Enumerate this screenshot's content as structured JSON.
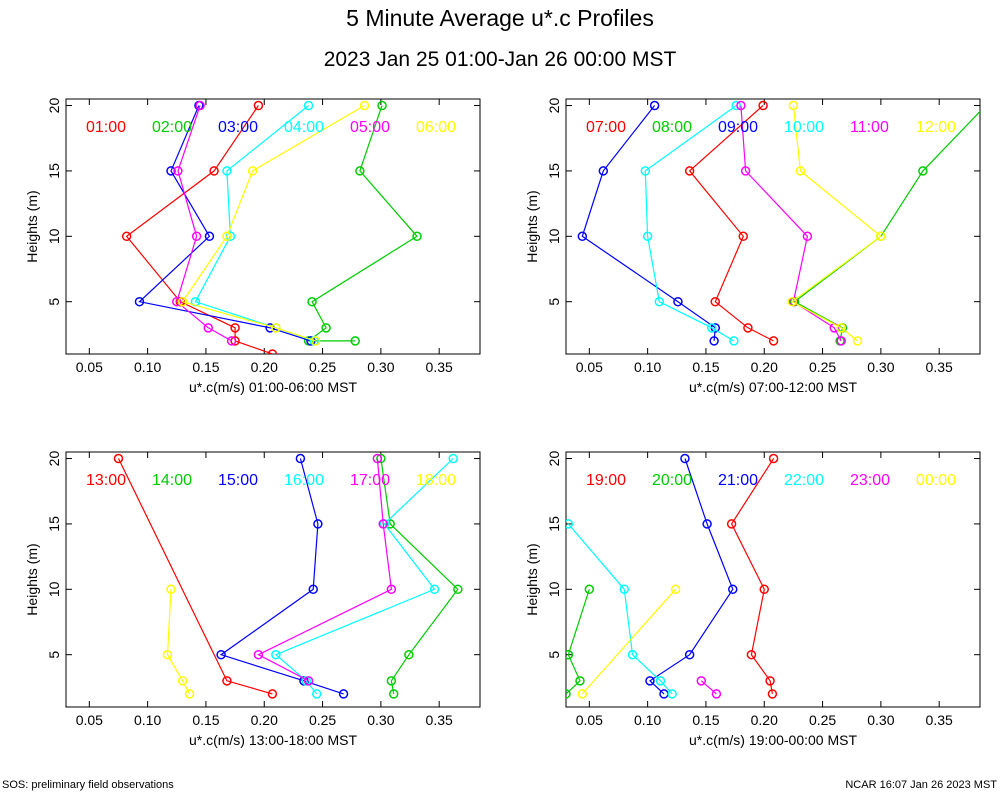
{
  "title": "5 Minute Average u*.c Profiles",
  "subtitle": "2023 Jan 25 01:00-Jan 26 00:00 MST",
  "footer_left": "SOS: preliminary field observations",
  "footer_right": "NCAR 16:07 Jan 26 2023 MST",
  "colors": [
    "#ff0000",
    "#00cc00",
    "#0000ff",
    "#00ffff",
    "#ff00ff",
    "#ffff00"
  ],
  "chart_data": [
    {
      "type": "line",
      "ylabel": "Heights (m)",
      "xlabel": "u*.c(m/s) 01:00-06:00 MST",
      "xlim": [
        0.03,
        0.385
      ],
      "ylim": [
        1,
        20.5
      ],
      "xticks": [
        "0.05",
        "0.10",
        "0.15",
        "0.20",
        "0.25",
        "0.30",
        "0.35"
      ],
      "yticks": [
        "5",
        "10",
        "15",
        "20"
      ],
      "series": [
        {
          "name": "01:00",
          "points": [
            [
              0.207,
              1
            ],
            [
              0.175,
              2
            ],
            [
              0.175,
              3
            ],
            [
              0.128,
              5
            ],
            [
              0.082,
              10
            ],
            [
              0.157,
              15
            ],
            [
              0.195,
              20
            ]
          ]
        },
        {
          "name": "02:00",
          "points": [
            [
              0.278,
              2
            ],
            [
              0.238,
              2
            ],
            [
              0.253,
              3
            ],
            [
              0.241,
              5
            ],
            [
              0.331,
              10
            ],
            [
              0.282,
              15
            ],
            [
              0.301,
              20
            ]
          ]
        },
        {
          "name": "03:00",
          "points": [
            [
              0.24,
              2
            ],
            [
              0.205,
              3
            ],
            [
              0.093,
              5
            ],
            [
              0.153,
              10
            ],
            [
              0.12,
              15
            ],
            [
              0.144,
              20
            ]
          ]
        },
        {
          "name": "04:00",
          "points": [
            [
              0.243,
              2
            ],
            [
              0.21,
              3
            ],
            [
              0.141,
              5
            ],
            [
              0.171,
              10
            ],
            [
              0.168,
              15
            ],
            [
              0.238,
              20
            ]
          ]
        },
        {
          "name": "05:00",
          "points": [
            [
              0.172,
              2
            ],
            [
              0.152,
              3
            ],
            [
              0.125,
              5
            ],
            [
              0.142,
              10
            ],
            [
              0.126,
              15
            ],
            [
              0.145,
              20
            ]
          ]
        },
        {
          "name": "06:00",
          "points": [
            [
              0.244,
              2
            ],
            [
              0.21,
              3
            ],
            [
              0.13,
              5
            ],
            [
              0.168,
              10
            ],
            [
              0.19,
              15
            ],
            [
              0.286,
              20
            ]
          ]
        }
      ]
    },
    {
      "type": "line",
      "ylabel": "Heights (m)",
      "xlabel": "u*.c(m/s) 07:00-12:00 MST",
      "xlim": [
        0.03,
        0.385
      ],
      "ylim": [
        1,
        20.5
      ],
      "xticks": [
        "0.05",
        "0.10",
        "0.15",
        "0.20",
        "0.25",
        "0.30",
        "0.35"
      ],
      "yticks": [
        "5",
        "10",
        "15",
        "20"
      ],
      "series": [
        {
          "name": "07:00",
          "points": [
            [
              0.208,
              2
            ],
            [
              0.186,
              3
            ],
            [
              0.158,
              5
            ],
            [
              0.182,
              10
            ],
            [
              0.136,
              15
            ],
            [
              0.199,
              20
            ]
          ]
        },
        {
          "name": "08:00",
          "points": [
            [
              0.265,
              2
            ],
            [
              0.267,
              3
            ],
            [
              0.226,
              5
            ],
            [
              0.3,
              10
            ],
            [
              0.336,
              15
            ],
            [
              0.39,
              20
            ]
          ]
        },
        {
          "name": "09:00",
          "points": [
            [
              0.157,
              2
            ],
            [
              0.158,
              3
            ],
            [
              0.126,
              5
            ],
            [
              0.044,
              10
            ],
            [
              0.062,
              15
            ],
            [
              0.106,
              20
            ]
          ]
        },
        {
          "name": "10:00",
          "points": [
            [
              0.174,
              2
            ],
            [
              0.155,
              3
            ],
            [
              0.11,
              5
            ],
            [
              0.1,
              10
            ],
            [
              0.098,
              15
            ],
            [
              0.176,
              20
            ]
          ]
        },
        {
          "name": "11:00",
          "points": [
            [
              0.266,
              2
            ],
            [
              0.26,
              3
            ],
            [
              0.225,
              5
            ],
            [
              0.237,
              10
            ],
            [
              0.184,
              15
            ],
            [
              0.18,
              20
            ]
          ]
        },
        {
          "name": "12:00",
          "points": [
            [
              0.28,
              2
            ],
            [
              0.266,
              3
            ],
            [
              0.224,
              5
            ],
            [
              0.3,
              10
            ],
            [
              0.231,
              15
            ],
            [
              0.225,
              20
            ]
          ]
        }
      ]
    },
    {
      "type": "line",
      "ylabel": "Heights (m)",
      "xlabel": "u*.c(m/s) 13:00-18:00 MST",
      "xlim": [
        0.03,
        0.385
      ],
      "ylim": [
        1,
        20.5
      ],
      "xticks": [
        "0.05",
        "0.10",
        "0.15",
        "0.20",
        "0.25",
        "0.30",
        "0.35"
      ],
      "yticks": [
        "5",
        "10",
        "15",
        "20"
      ],
      "series": [
        {
          "name": "13:00",
          "points": [
            [
              0.207,
              2
            ],
            [
              0.168,
              3
            ],
            [
              0.075,
              20
            ]
          ]
        },
        {
          "name": "14:00",
          "points": [
            [
              0.311,
              2
            ],
            [
              0.309,
              3
            ],
            [
              0.324,
              5
            ],
            [
              0.366,
              10
            ],
            [
              0.308,
              15
            ],
            [
              0.3,
              20
            ]
          ]
        },
        {
          "name": "15:00",
          "points": [
            [
              0.268,
              2
            ],
            [
              0.234,
              3
            ],
            [
              0.163,
              5
            ],
            [
              0.242,
              10
            ],
            [
              0.246,
              15
            ],
            [
              0.231,
              20
            ]
          ]
        },
        {
          "name": "16:00",
          "points": [
            [
              0.245,
              2
            ],
            [
              0.236,
              3
            ],
            [
              0.21,
              5
            ],
            [
              0.346,
              10
            ],
            [
              0.303,
              15
            ],
            [
              0.362,
              20
            ]
          ]
        },
        {
          "name": "17:00",
          "points": [
            [
              0.238,
              3
            ],
            [
              0.195,
              5
            ],
            [
              0.309,
              10
            ],
            [
              0.302,
              15
            ],
            [
              0.297,
              20
            ]
          ]
        },
        {
          "name": "18:00",
          "points": [
            [
              0.136,
              2
            ],
            [
              0.13,
              3
            ],
            [
              0.117,
              5
            ],
            [
              0.12,
              10
            ]
          ]
        }
      ]
    },
    {
      "type": "line",
      "ylabel": "Heights (m)",
      "xlabel": "u*.c(m/s) 19:00-00:00 MST",
      "xlim": [
        0.03,
        0.385
      ],
      "ylim": [
        1,
        20.5
      ],
      "xticks": [
        "0.05",
        "0.10",
        "0.15",
        "0.20",
        "0.25",
        "0.30",
        "0.35"
      ],
      "yticks": [
        "5",
        "10",
        "15",
        "20"
      ],
      "series": [
        {
          "name": "19:00",
          "points": [
            [
              0.207,
              2
            ],
            [
              0.205,
              3
            ],
            [
              0.189,
              5
            ],
            [
              0.2,
              10
            ],
            [
              0.172,
              15
            ],
            [
              0.208,
              20
            ]
          ]
        },
        {
          "name": "20:00",
          "points": [
            [
              0.03,
              2
            ],
            [
              0.042,
              3
            ],
            [
              0.032,
              5
            ],
            [
              0.05,
              10
            ]
          ]
        },
        {
          "name": "21:00",
          "points": [
            [
              0.114,
              2
            ],
            [
              0.102,
              3
            ],
            [
              0.136,
              5
            ],
            [
              0.173,
              10
            ],
            [
              0.151,
              15
            ],
            [
              0.132,
              20
            ]
          ]
        },
        {
          "name": "22:00",
          "points": [
            [
              0.121,
              2
            ],
            [
              0.111,
              3
            ],
            [
              0.087,
              5
            ],
            [
              0.08,
              10
            ],
            [
              0.032,
              15
            ]
          ]
        },
        {
          "name": "23:00",
          "points": [
            [
              0.159,
              2
            ],
            [
              0.146,
              3
            ]
          ]
        },
        {
          "name": "00:00",
          "points": [
            [
              0.044,
              2
            ],
            [
              0.124,
              10
            ]
          ]
        }
      ]
    }
  ]
}
